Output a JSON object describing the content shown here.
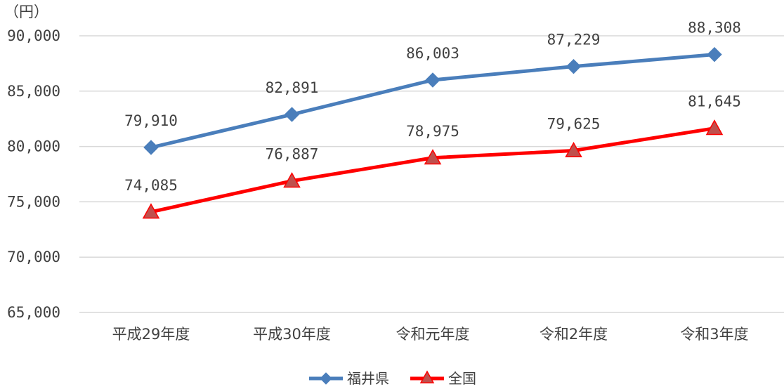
{
  "chart_data": {
    "type": "line",
    "unit_label": "（円）",
    "categories": [
      "平成29年度",
      "平成30年度",
      "令和元年度",
      "令和2年度",
      "令和3年度"
    ],
    "ylim": [
      65000,
      90000
    ],
    "yticks": [
      {
        "value": 90000,
        "label": "90,000"
      },
      {
        "value": 85000,
        "label": "85,000"
      },
      {
        "value": 80000,
        "label": "80,000"
      },
      {
        "value": 75000,
        "label": "75,000"
      },
      {
        "value": 70000,
        "label": "70,000"
      },
      {
        "value": 65000,
        "label": "65,000"
      }
    ],
    "grid": true,
    "legend_position": "bottom",
    "series": [
      {
        "name": "福井県",
        "color": "#4a7ebb",
        "marker": "diamond",
        "values": [
          79910,
          82891,
          86003,
          87229,
          88308
        ],
        "labels": [
          "79,910",
          "82,891",
          "86,003",
          "87,229",
          "88,308"
        ]
      },
      {
        "name": "全国",
        "color": "#ff0000",
        "marker_fill": "#c0504d",
        "marker": "triangle",
        "values": [
          74085,
          76887,
          78975,
          79625,
          81645
        ],
        "labels": [
          "74,085",
          "76,887",
          "78,975",
          "79,625",
          "81,645"
        ]
      }
    ]
  }
}
